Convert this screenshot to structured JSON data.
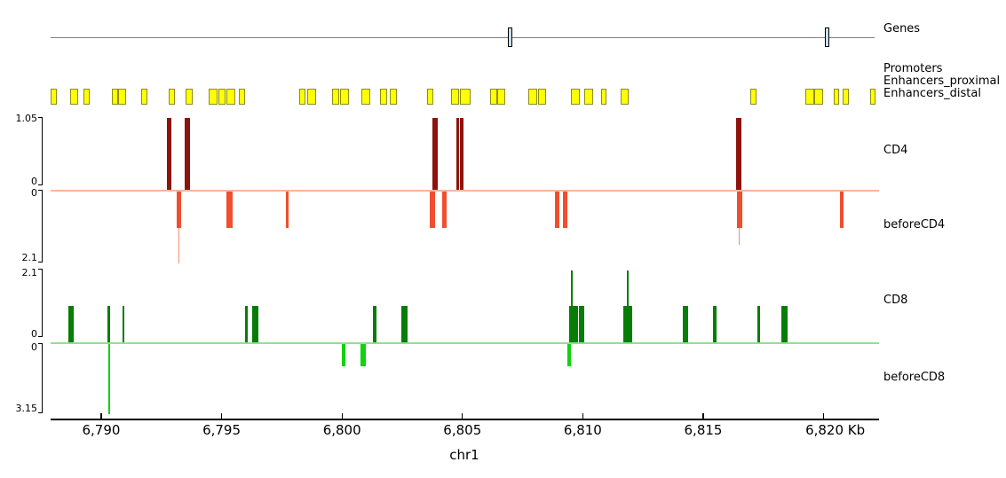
{
  "chart_data": {
    "type": "genome-tracks",
    "x_axis": {
      "label": "chr1",
      "unit": "Kb",
      "domain_kb": [
        6787.9,
        6822.3
      ],
      "ticks_kb": [
        6790,
        6795,
        6800,
        6805,
        6810,
        6815,
        6820
      ],
      "tick_labels": [
        "6,790",
        "6,795",
        "6,800",
        "6,805",
        "6,810",
        "6,815",
        "6,820 Kb"
      ]
    },
    "tracks": [
      {
        "id": "genes",
        "label": "Genes",
        "type": "gene-line",
        "line_color": "#7f7f7f",
        "mark_fill": "#c8dfec",
        "mark_border": "#000000",
        "marks_kb": [
          [
            6806.9,
            6807.09
          ],
          [
            6820.05,
            6820.23
          ]
        ]
      },
      {
        "id": "regulatory",
        "type": "intervals",
        "labels": [
          "Promoters",
          "Enhancers_proximal",
          "Enhancers_distal"
        ],
        "fill": "#ffff00",
        "border": "#8e8e12",
        "intervals_kb": [
          [
            6787.9,
            6788.16
          ],
          [
            6788.71,
            6789.04
          ],
          [
            6789.26,
            6789.52
          ],
          [
            6790.44,
            6790.7
          ],
          [
            6790.7,
            6791.03
          ],
          [
            6791.66,
            6791.92
          ],
          [
            6792.8,
            6793.06
          ],
          [
            6793.5,
            6793.8
          ],
          [
            6794.46,
            6794.83
          ],
          [
            6794.87,
            6795.16
          ],
          [
            6795.2,
            6795.57
          ],
          [
            6795.71,
            6795.97
          ],
          [
            6798.22,
            6798.48
          ],
          [
            6798.55,
            6798.92
          ],
          [
            6799.58,
            6799.88
          ],
          [
            6799.92,
            6800.28
          ],
          [
            6800.8,
            6801.17
          ],
          [
            6801.57,
            6801.87
          ],
          [
            6801.98,
            6802.27
          ],
          [
            6803.53,
            6803.78
          ],
          [
            6804.52,
            6804.85
          ],
          [
            6804.89,
            6805.33
          ],
          [
            6806.14,
            6806.44
          ],
          [
            6806.44,
            6806.77
          ],
          [
            6807.73,
            6808.1
          ],
          [
            6808.13,
            6808.46
          ],
          [
            6809.5,
            6809.87
          ],
          [
            6810.05,
            6810.42
          ],
          [
            6810.75,
            6810.97
          ],
          [
            6811.56,
            6811.89
          ],
          [
            6816.94,
            6817.2
          ],
          [
            6819.23,
            6819.6
          ],
          [
            6819.6,
            6819.96
          ],
          [
            6820.41,
            6820.63
          ],
          [
            6820.78,
            6821.04
          ],
          [
            6821.92,
            6822.14
          ]
        ]
      },
      {
        "id": "cd4",
        "label": "CD4",
        "type": "bars-up",
        "color": "#8e130c",
        "ymax": 1.05,
        "yticks": [
          "1.05",
          "0"
        ],
        "bars": [
          {
            "s": 6792.73,
            "e": 6792.91,
            "v": 1.05
          },
          {
            "s": 6793.46,
            "e": 6793.69,
            "v": 1.05
          },
          {
            "s": 6803.75,
            "e": 6803.97,
            "v": 1.05
          },
          {
            "s": 6804.74,
            "e": 6804.87,
            "v": 1.05
          },
          {
            "s": 6804.91,
            "e": 6805.04,
            "v": 1.05
          },
          {
            "s": 6816.35,
            "e": 6816.57,
            "v": 1.05
          }
        ]
      },
      {
        "id": "beforeCD4",
        "label": "beforeCD4",
        "type": "bars-down",
        "color": "#f04e2e",
        "spike_color": "#f58d72",
        "zero_line_color": "#f8b49e",
        "ymax": 2.1,
        "yticks": [
          "0",
          "2.1"
        ],
        "bars": [
          {
            "s": 6793.13,
            "e": 6793.32,
            "v": 1.05,
            "spike": 2.1,
            "spike_at": 6793.22
          },
          {
            "s": 6795.2,
            "e": 6795.46,
            "v": 1.05
          },
          {
            "s": 6797.67,
            "e": 6797.78,
            "v": 1.05
          },
          {
            "s": 6803.64,
            "e": 6803.86,
            "v": 1.05
          },
          {
            "s": 6804.15,
            "e": 6804.34,
            "v": 1.05
          },
          {
            "s": 6808.83,
            "e": 6809.02,
            "v": 1.05
          },
          {
            "s": 6809.17,
            "e": 6809.35,
            "v": 1.05
          },
          {
            "s": 6816.39,
            "e": 6816.61,
            "v": 1.05,
            "spike": 1.55,
            "spike_at": 6816.5
          },
          {
            "s": 6820.67,
            "e": 6820.81,
            "v": 1.05
          }
        ]
      },
      {
        "id": "cd8",
        "label": "CD8",
        "type": "bars-up",
        "color": "#067d06",
        "spike_color": "#067d06",
        "ymax": 2.1,
        "yticks": [
          "2.1",
          "0"
        ],
        "bars": [
          {
            "s": 6788.64,
            "e": 6788.86,
            "v": 1.05
          },
          {
            "s": 6790.26,
            "e": 6790.37,
            "v": 1.05
          },
          {
            "s": 6790.88,
            "e": 6790.96,
            "v": 1.05
          },
          {
            "s": 6795.97,
            "e": 6796.08,
            "v": 1.05
          },
          {
            "s": 6796.27,
            "e": 6796.52,
            "v": 1.05
          },
          {
            "s": 6801.28,
            "e": 6801.43,
            "v": 1.05
          },
          {
            "s": 6802.46,
            "e": 6802.72,
            "v": 1.05
          },
          {
            "s": 6809.42,
            "e": 6809.81,
            "v": 1.05,
            "spike": 2.05,
            "spike_at": 6809.55
          },
          {
            "s": 6809.85,
            "e": 6810.05,
            "v": 1.05
          },
          {
            "s": 6811.67,
            "e": 6812.04,
            "v": 1.05,
            "spike": 2.05,
            "spike_at": 6811.86
          },
          {
            "s": 6814.14,
            "e": 6814.36,
            "v": 1.05
          },
          {
            "s": 6815.39,
            "e": 6815.54,
            "v": 1.05
          },
          {
            "s": 6817.24,
            "e": 6817.35,
            "v": 1.05
          },
          {
            "s": 6818.23,
            "e": 6818.49,
            "v": 1.05
          }
        ]
      },
      {
        "id": "beforeCD8",
        "label": "beforeCD8",
        "type": "bars-down",
        "color": "#0ed30e",
        "spike_color": "#35dd35",
        "zero_line_color": "#8fe28f",
        "ymax": 3.15,
        "yticks": [
          "0",
          "3.15"
        ],
        "bars": [
          {
            "s": 6790.29,
            "e": 6790.37,
            "v": 3.15
          },
          {
            "s": 6799.99,
            "e": 6800.14,
            "v": 1.0
          },
          {
            "s": 6800.76,
            "e": 6800.98,
            "v": 1.0
          },
          {
            "s": 6809.35,
            "e": 6809.5,
            "v": 1.0
          }
        ]
      }
    ]
  }
}
